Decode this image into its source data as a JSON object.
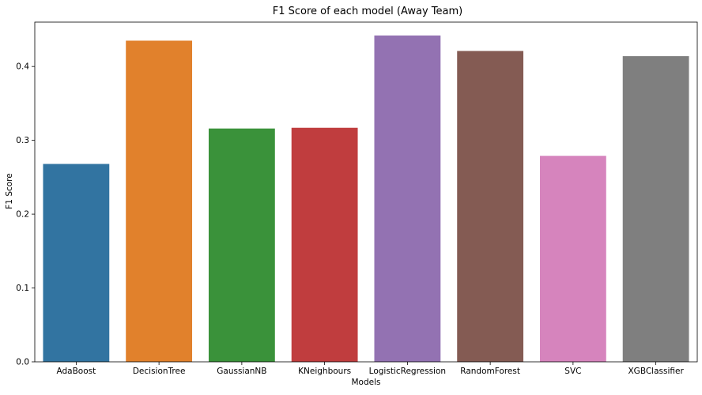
{
  "chart_data": {
    "type": "bar",
    "title": "F1 Score of each model (Away Team)",
    "xlabel": "Models",
    "ylabel": "F1 Score",
    "categories": [
      "AdaBoost",
      "DecisionTree",
      "GaussianNB",
      "KNeighbours",
      "LogisticRegression",
      "RandomForest",
      "SVC",
      "XGBClassifier"
    ],
    "values": [
      0.268,
      0.435,
      0.316,
      0.317,
      0.442,
      0.421,
      0.279,
      0.414
    ],
    "colors": [
      "#3274a1",
      "#e1812c",
      "#3a923a",
      "#c03d3e",
      "#9372b2",
      "#845b53",
      "#d684bd",
      "#7f7f7f"
    ],
    "ylim": [
      0,
      0.4601
    ],
    "yticks": [
      "0.0",
      "0.1",
      "0.2",
      "0.3",
      "0.4"
    ],
    "grid": false,
    "legend": "none"
  }
}
